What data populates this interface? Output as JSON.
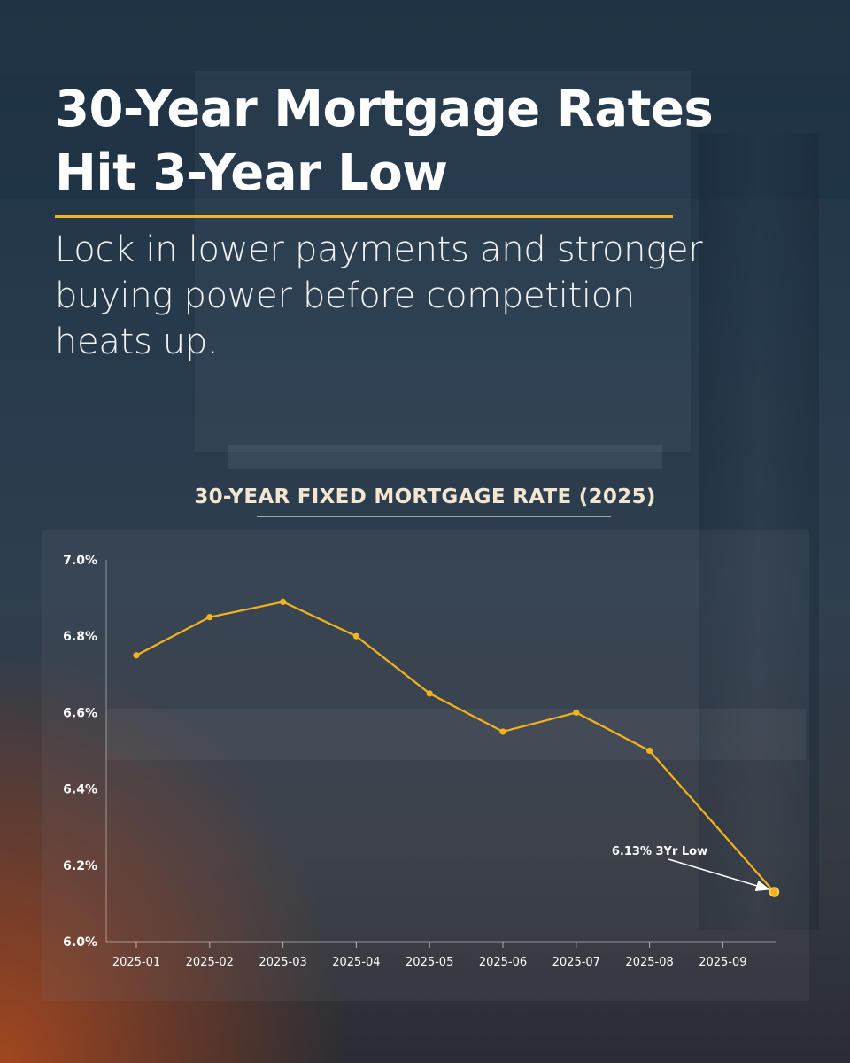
{
  "header": {
    "title": "30-Year Mortgage Rates Hit 3-Year Low",
    "subtitle": "Lock in lower payments and stronger buying power before competition heats up."
  },
  "colors": {
    "accent": "#f0b429",
    "line": "#f2b31b",
    "text": "#ffffff"
  },
  "chart_data": {
    "type": "line",
    "title": "30-YEAR FIXED MORTGAGE RATE (2025)",
    "xlabel": "",
    "ylabel": "",
    "categories": [
      "2025-01",
      "2025-02",
      "2025-03",
      "2025-04",
      "2025-05",
      "2025-06",
      "2025-07",
      "2025-08",
      "2025-09"
    ],
    "series": [
      {
        "values": [
          6.75,
          6.85,
          6.89,
          6.8,
          6.65,
          6.55,
          6.6,
          6.5,
          6.13
        ]
      }
    ],
    "ylim": [
      6.0,
      7.0
    ],
    "yticks": [
      "6.0%",
      "6.2%",
      "6.4%",
      "6.6%",
      "6.8%",
      "7.0%"
    ],
    "ytick_values": [
      6.0,
      6.2,
      6.4,
      6.6,
      6.8,
      7.0
    ],
    "last_point_x": 9.7,
    "grid": false,
    "legend": "none",
    "annotation": {
      "text": "6.13% 3Yr Low",
      "x": 9.7,
      "y": 6.13
    }
  }
}
